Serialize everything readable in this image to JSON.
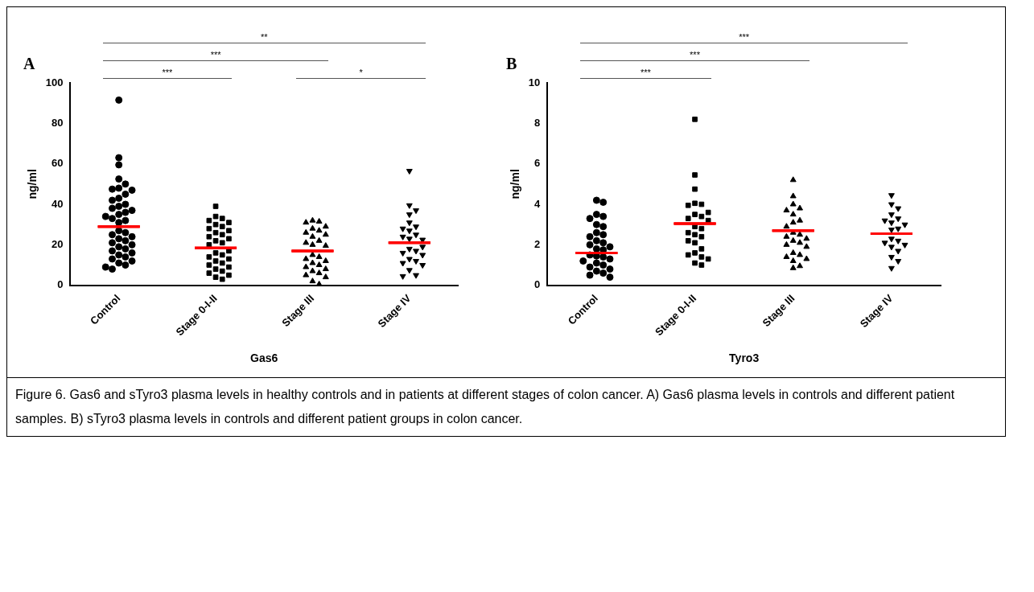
{
  "chart_data": [
    {
      "type": "scatter",
      "title": "A",
      "xlabel": "Gas6",
      "ylabel": "ng/ml",
      "categories": [
        "Control",
        "Stage 0-I-II",
        "Stage III",
        "Stage IV"
      ],
      "ylim": [
        0,
        100
      ],
      "yticks": [
        0,
        20,
        40,
        60,
        80,
        100
      ],
      "grid": false,
      "legend": false,
      "annotations": [
        "**",
        "***",
        "***",
        "*"
      ],
      "series": [
        {
          "color": "#000000",
          "marker": "circle",
          "x": [
            "Control",
            "Control",
            "Control",
            "Control",
            "Control",
            "Control",
            "Control",
            "Control",
            "Control",
            "Control",
            "Control",
            "Control",
            "Control",
            "Control",
            "Control",
            "Control",
            "Control",
            "Control",
            "Control",
            "Control",
            "Control",
            "Control",
            "Control",
            "Control",
            "Control",
            "Control",
            "Control",
            "Control",
            "Control",
            "Control",
            "Control",
            "Control",
            "Control",
            "Control",
            "Control",
            "Control",
            "Control",
            "Control",
            "Control",
            "Control",
            "Control"
          ],
          "values": [
            91.5,
            63,
            59.5,
            52.5,
            50,
            48,
            47.5,
            47,
            45,
            43,
            42,
            40,
            39,
            38,
            37,
            36,
            35,
            33,
            32,
            31,
            27,
            26,
            25,
            24,
            23,
            22,
            21,
            20,
            19,
            18,
            17,
            16,
            15,
            14,
            13,
            12,
            11,
            10,
            8,
            9,
            34
          ]
        },
        {
          "color": "#000000",
          "marker": "square",
          "x": [
            "Stage 0-I-II",
            "Stage 0-I-II",
            "Stage 0-I-II",
            "Stage 0-I-II",
            "Stage 0-I-II",
            "Stage 0-I-II",
            "Stage 0-I-II",
            "Stage 0-I-II",
            "Stage 0-I-II",
            "Stage 0-I-II",
            "Stage 0-I-II",
            "Stage 0-I-II",
            "Stage 0-I-II",
            "Stage 0-I-II",
            "Stage 0-I-II",
            "Stage 0-I-II",
            "Stage 0-I-II",
            "Stage 0-I-II",
            "Stage 0-I-II",
            "Stage 0-I-II",
            "Stage 0-I-II",
            "Stage 0-I-II",
            "Stage 0-I-II",
            "Stage 0-I-II",
            "Stage 0-I-II",
            "Stage 0-I-II",
            "Stage 0-I-II",
            "Stage 0-I-II",
            "Stage 0-I-II",
            "Stage 0-I-II",
            "Stage 0-I-II"
          ],
          "values": [
            39,
            34,
            33,
            32,
            31,
            30,
            29,
            28,
            27,
            26,
            25,
            24,
            23,
            22,
            21,
            20,
            16,
            15,
            14,
            13,
            12,
            11,
            10,
            9,
            8,
            7,
            6,
            5,
            4,
            3,
            17
          ]
        },
        {
          "color": "#000000",
          "marker": "triangle",
          "x": [
            "Stage III",
            "Stage III",
            "Stage III",
            "Stage III",
            "Stage III",
            "Stage III",
            "Stage III",
            "Stage III",
            "Stage III",
            "Stage III",
            "Stage III",
            "Stage III",
            "Stage III",
            "Stage III",
            "Stage III",
            "Stage III",
            "Stage III",
            "Stage III",
            "Stage III",
            "Stage III",
            "Stage III",
            "Stage III",
            "Stage III",
            "Stage III",
            "Stage III",
            "Stage III",
            "Stage III"
          ],
          "values": [
            32,
            31.5,
            31,
            29,
            28,
            27,
            26,
            25,
            24,
            22,
            21,
            20,
            15,
            14,
            13,
            12,
            11,
            10,
            9,
            8,
            7,
            6,
            5,
            4,
            2,
            0.5,
            19.5
          ]
        },
        {
          "color": "#000000",
          "marker": "triangle_down",
          "x": [
            "Stage IV",
            "Stage IV",
            "Stage IV",
            "Stage IV",
            "Stage IV",
            "Stage IV",
            "Stage IV",
            "Stage IV",
            "Stage IV",
            "Stage IV",
            "Stage IV",
            "Stage IV",
            "Stage IV",
            "Stage IV",
            "Stage IV",
            "Stage IV",
            "Stage IV",
            "Stage IV",
            "Stage IV",
            "Stage IV",
            "Stage IV",
            "Stage IV",
            "Stage IV",
            "Stage IV"
          ],
          "values": [
            56.5,
            39.5,
            37,
            35,
            31,
            29,
            28,
            27,
            25,
            24,
            23,
            18,
            17,
            16,
            15,
            13,
            12,
            11,
            10,
            7.5,
            5,
            4.5,
            22.5,
            19
          ]
        },
        {
          "type": "box",
          "color": "#ff0000",
          "boxes": [
            {
              "low": 29,
              "q1": 29,
              "median": 29,
              "q3": 29,
              "high": 29,
              "mean": 29
            },
            {
              "low": 18.5,
              "q1": 18.5,
              "median": 18.5,
              "q3": 18.5,
              "high": 18.5,
              "mean": 18.5
            },
            {
              "low": 17,
              "q1": 17,
              "median": 17,
              "q3": 17,
              "high": 17,
              "mean": 17
            },
            {
              "low": 21,
              "q1": 21,
              "median": 21,
              "q3": 21,
              "high": 21,
              "mean": 21
            }
          ]
        }
      ]
    },
    {
      "type": "scatter",
      "title": "B",
      "xlabel": "Tyro3",
      "ylabel": "ng/ml",
      "categories": [
        "Control",
        "Stage 0-I-II",
        "Stage III",
        "Stage IV"
      ],
      "ylim": [
        0,
        10
      ],
      "yticks": [
        0,
        2,
        4,
        6,
        8,
        10
      ],
      "grid": false,
      "legend": false,
      "annotations": [
        "***",
        "***",
        "***",
        "Figure 6. Gas6 and sTyro3 plasma levels in healthy controls and in patients at different stages of colon cancer. A) Gas6 plasma levels in controls and different patient samples. B) sTyro3 plasma levels in controls and different patient groups in colon cancer."
      ],
      "series": [
        {
          "color": "#000000",
          "marker": "circle",
          "x": [
            "Control",
            "Control",
            "Control",
            "Control",
            "Control",
            "Control",
            "Control",
            "Control",
            "Control",
            "Control",
            "Control",
            "Control",
            "Control",
            "Control",
            "Control",
            "Control",
            "Control",
            "Control",
            "Control",
            "Control",
            "Control",
            "Control",
            "Control",
            "Control",
            "Control",
            "Control",
            "Control",
            "Control",
            "Control"
          ],
          "values": [
            4.2,
            4.1,
            3.5,
            3.4,
            3.3,
            3.0,
            2.9,
            2.6,
            2.5,
            2.4,
            2.2,
            2.1,
            2.0,
            1.9,
            1.8,
            1.75,
            1.5,
            1.45,
            1.4,
            1.3,
            1.2,
            1.1,
            1.0,
            0.9,
            0.8,
            0.7,
            0.6,
            0.5,
            0.4
          ]
        },
        {
          "color": "#000000",
          "marker": "square",
          "x": [
            "Stage 0-I-II",
            "Stage 0-I-II",
            "Stage 0-I-II",
            "Stage 0-I-II",
            "Stage 0-I-II",
            "Stage 0-I-II",
            "Stage 0-I-II",
            "Stage 0-I-II",
            "Stage 0-I-II",
            "Stage 0-I-II",
            "Stage 0-I-II",
            "Stage 0-I-II",
            "Stage 0-I-II",
            "Stage 0-I-II",
            "Stage 0-I-II",
            "Stage 0-I-II",
            "Stage 0-I-II",
            "Stage 0-I-II",
            "Stage 0-I-II",
            "Stage 0-I-II",
            "Stage 0-I-II",
            "Stage 0-I-II",
            "Stage 0-I-II",
            "Stage 0-I-II",
            "Stage 0-I-II"
          ],
          "values": [
            8.2,
            5.45,
            4.75,
            4.05,
            4.0,
            3.95,
            3.5,
            3.4,
            3.3,
            3.2,
            2.9,
            2.8,
            2.6,
            2.5,
            2.4,
            2.2,
            2.1,
            1.8,
            1.6,
            1.5,
            1.4,
            1.3,
            1.1,
            1.0,
            3.6
          ]
        },
        {
          "color": "#000000",
          "marker": "triangle",
          "x": [
            "Stage III",
            "Stage III",
            "Stage III",
            "Stage III",
            "Stage III",
            "Stage III",
            "Stage III",
            "Stage III",
            "Stage III",
            "Stage III",
            "Stage III",
            "Stage III",
            "Stage III",
            "Stage III",
            "Stage III",
            "Stage III",
            "Stage III",
            "Stage III",
            "Stage III",
            "Stage III",
            "Stage III",
            "Stage III",
            "Stage III",
            "Stage III"
          ],
          "values": [
            5.2,
            4.4,
            4.0,
            3.8,
            3.7,
            3.5,
            3.2,
            3.1,
            2.9,
            2.6,
            2.5,
            2.4,
            2.3,
            2.2,
            2.1,
            2.0,
            1.9,
            1.6,
            1.5,
            1.4,
            1.3,
            1.2,
            0.95,
            0.85
          ]
        },
        {
          "color": "#000000",
          "marker": "triangle_down",
          "x": [
            "Stage IV",
            "Stage IV",
            "Stage IV",
            "Stage IV",
            "Stage IV",
            "Stage IV",
            "Stage IV",
            "Stage IV",
            "Stage IV",
            "Stage IV",
            "Stage IV",
            "Stage IV",
            "Stage IV",
            "Stage IV",
            "Stage IV",
            "Stage IV",
            "Stage IV",
            "Stage IV",
            "Stage IV"
          ],
          "values": [
            4.45,
            4.0,
            3.8,
            3.5,
            3.3,
            3.2,
            3.1,
            3.0,
            2.8,
            2.3,
            2.2,
            2.1,
            2.0,
            1.9,
            1.7,
            1.4,
            1.2,
            0.85,
            2.75
          ]
        },
        {
          "type": "box",
          "color": "#ff0000",
          "boxes": [
            {
              "low": 1.6,
              "q1": 1.6,
              "median": 1.6,
              "q3": 1.6,
              "high": 1.6,
              "mean": 1.6
            },
            {
              "low": 3.05,
              "q1": 3.05,
              "median": 3.05,
              "q3": 3.05,
              "high": 3.05,
              "mean": 3.05
            },
            {
              "low": 2.7,
              "q1": 2.7,
              "median": 2.7,
              "q3": 2.7,
              "high": 2.7,
              "mean": 2.7
            },
            {
              "low": 2.55,
              "q1": 2.55,
              "median": 2.55,
              "q3": 2.55,
              "high": 2.55,
              "mean": 2.55
            }
          ]
        }
      ]
    }
  ]
}
